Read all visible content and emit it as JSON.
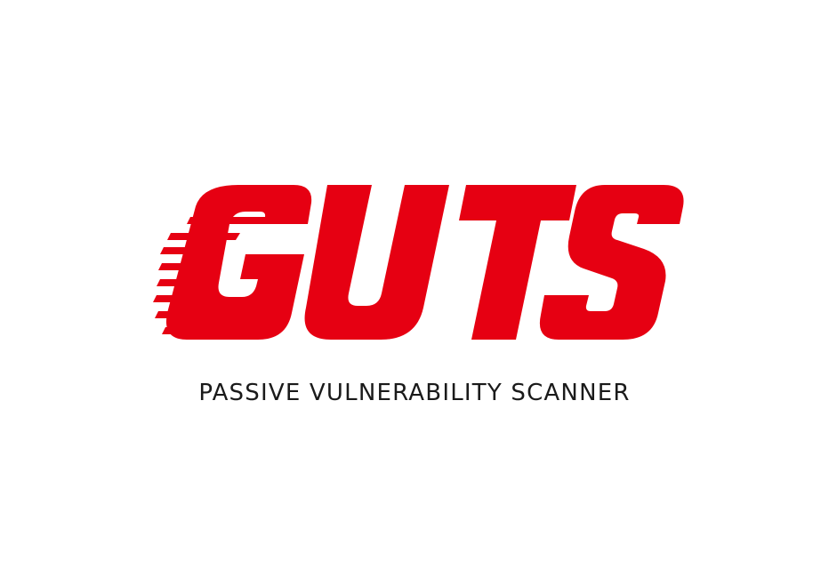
{
  "logo": {
    "wordmark": "GUTS",
    "tagline": "PASSIVE VULNERABILITY SCANNER",
    "colors": {
      "wordmark": "#e60012",
      "tagline": "#1a1a1a",
      "background": "#ffffff"
    }
  }
}
